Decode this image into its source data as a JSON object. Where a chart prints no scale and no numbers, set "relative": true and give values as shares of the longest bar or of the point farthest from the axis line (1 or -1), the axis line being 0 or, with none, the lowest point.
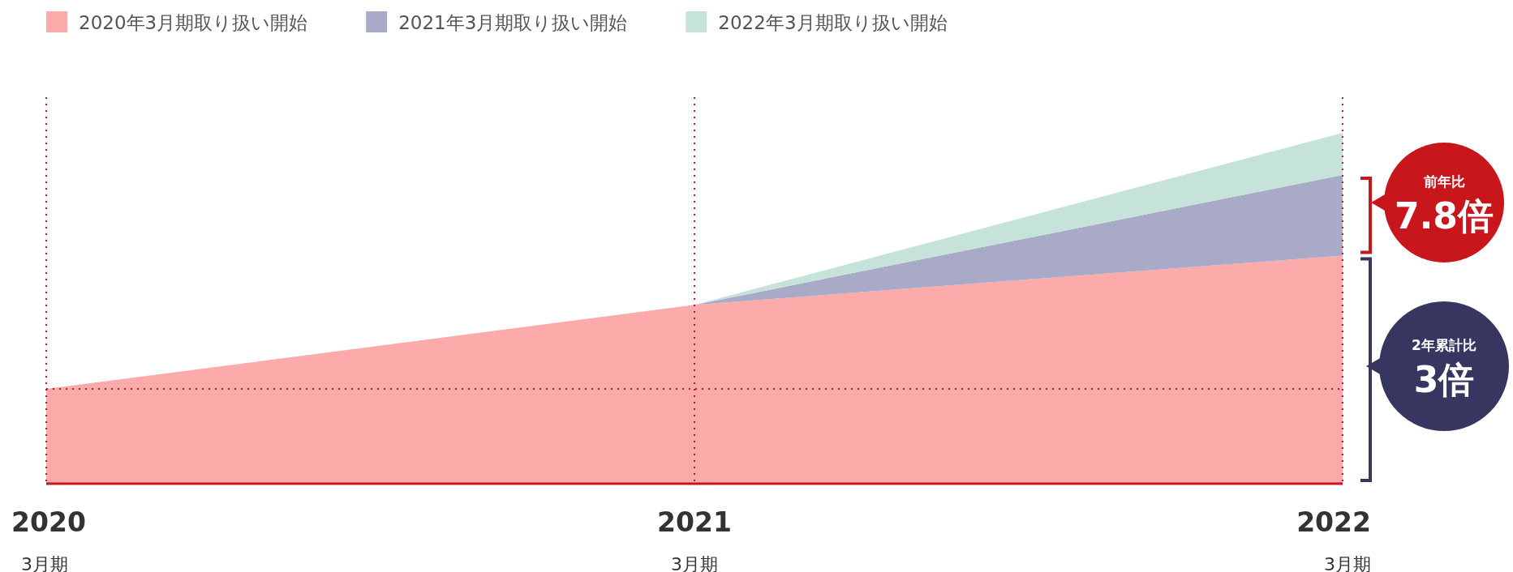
{
  "chart_data": {
    "type": "area",
    "stacked": true,
    "relative": true,
    "legend": "top left",
    "categories": [
      "2020 3月期",
      "2021 3月期",
      "2022 3月期"
    ],
    "series": [
      {
        "name": "2020年3月期取り扱い開始",
        "color": "#fcaaaa",
        "values": [
          0.27,
          0.51,
          0.65
        ]
      },
      {
        "name": "2021年3月期取り扱い開始",
        "color": "#a9a9c8",
        "values": [
          null,
          0,
          0.23
        ]
      },
      {
        "name": "2022年3月期取り扱い開始",
        "color": "#c5e3d8",
        "values": [
          null,
          0,
          0.12
        ]
      }
    ],
    "ref_lines": [
      {
        "axis": "y",
        "value": 0.27,
        "color": "#c8161d",
        "line_style": "dotted"
      },
      {
        "axis": "x",
        "value": "2020 3月期",
        "color": "#c8161d",
        "line_style": "dotted"
      },
      {
        "axis": "x",
        "value": "2021 3月期",
        "color": "#c8161d",
        "line_style": "dotted"
      },
      {
        "axis": "x",
        "value": "2022 3月期",
        "color": "#c8161d",
        "line_style": "dotted"
      }
    ],
    "annotations": [
      "前年比 7.8倍",
      "2年累計比 3倍"
    ]
  }
}
